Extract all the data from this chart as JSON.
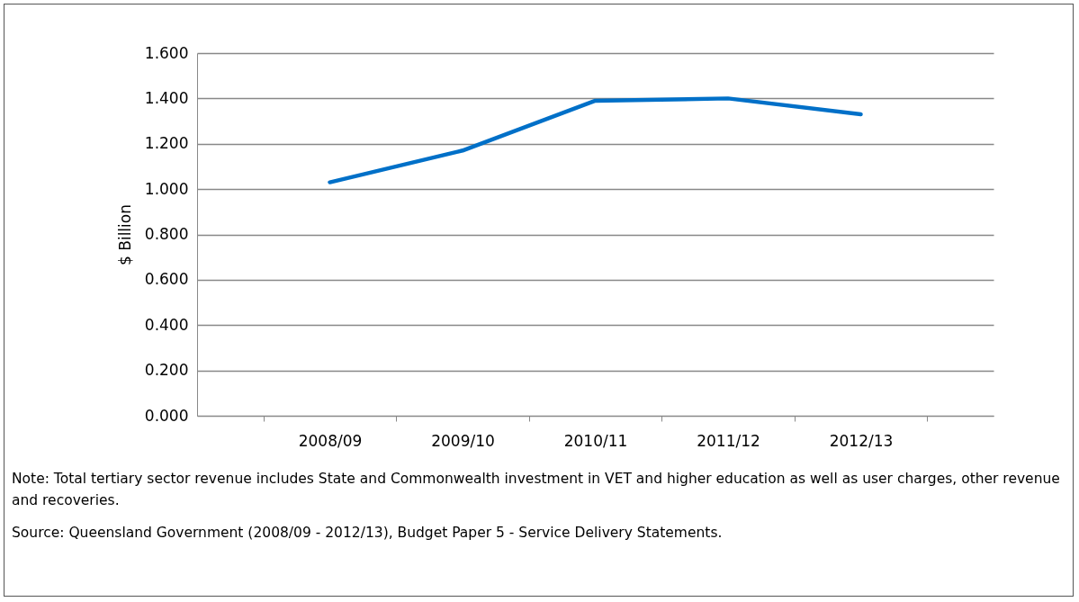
{
  "chart_data": {
    "type": "line",
    "ylabel": "$ Billion",
    "categories": [
      "2008/09",
      "2009/10",
      "2010/11",
      "2011/12",
      "2012/13"
    ],
    "series": [
      {
        "color": "#0070c8",
        "values": [
          1.03,
          1.17,
          1.39,
          1.4,
          1.33
        ]
      }
    ],
    "ylim": [
      0,
      1.6
    ],
    "yticks": [
      {
        "value": 0,
        "label": "0.000"
      },
      {
        "value": 0.2,
        "label": "0.200"
      },
      {
        "value": 0.4,
        "label": "0.400"
      },
      {
        "value": 0.6,
        "label": "0.600"
      },
      {
        "value": 0.8,
        "label": "0.800"
      },
      {
        "value": 1.0,
        "label": "1.000"
      },
      {
        "value": 1.2,
        "label": "1.200"
      },
      {
        "value": 1.4,
        "label": "1.400"
      },
      {
        "value": 1.6,
        "label": "1.600"
      }
    ],
    "grid": "y",
    "legend": false,
    "marker": "none",
    "line_style": "solid",
    "annotations": [
      "Note: Total tertiary sector revenue includes State and Commonwealth investment in VET and higher education as well as user charges, other revenue and recoveries.",
      "Source: Queensland Government (2008/09 - 2012/13), Budget Paper 5 - Service Delivery Statements."
    ]
  }
}
